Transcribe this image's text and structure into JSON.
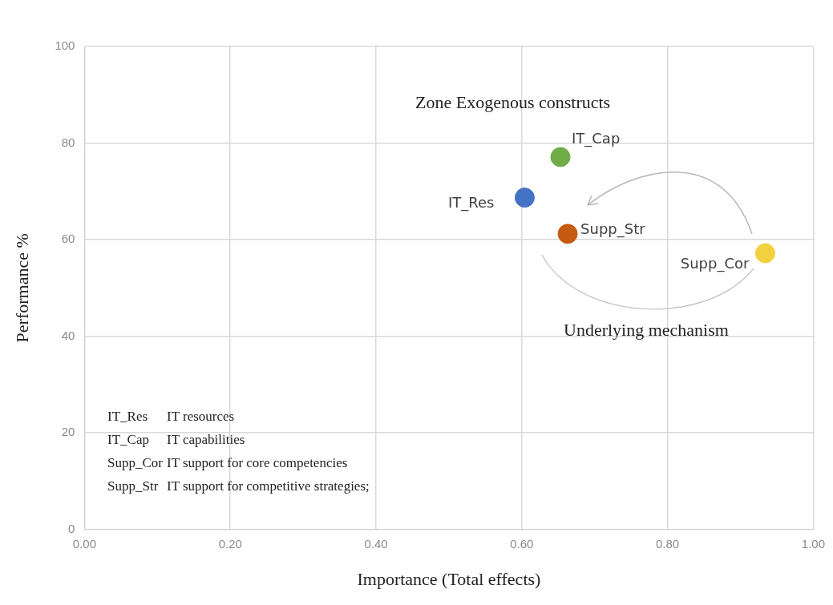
{
  "chart_data": {
    "type": "scatter",
    "xlabel": "Importance (Total effects)",
    "ylabel": "Performance %",
    "xlim": [
      0,
      1
    ],
    "xticks": [
      {
        "value": 0,
        "label": "0.00"
      },
      {
        "value": 0.2,
        "label": "0.20"
      },
      {
        "value": 0.4,
        "label": "0.40"
      },
      {
        "value": 0.6,
        "label": "0.60"
      },
      {
        "value": 0.8,
        "label": "0.80"
      },
      {
        "value": 1,
        "label": "1.00"
      }
    ],
    "ylim": [
      0,
      100
    ],
    "yticks": [
      0,
      20,
      40,
      60,
      80,
      100
    ],
    "grid": true,
    "legend": false,
    "marker": "circle",
    "series": [
      {
        "name": "IT_Res",
        "color": "#4472c4",
        "x": [
          0.604
        ],
        "values": [
          68.7
        ]
      },
      {
        "name": "IT_Cap",
        "color": "#70ad47",
        "x": [
          0.653
        ],
        "values": [
          77.1
        ]
      },
      {
        "name": "Supp_Str",
        "color": "#c55a11",
        "x": [
          0.663
        ],
        "values": [
          61.2
        ]
      },
      {
        "name": "Supp_Cor",
        "color": "#f2d13f",
        "x": [
          0.934
        ],
        "values": [
          57.2
        ]
      }
    ],
    "annotations": [
      "Zone Exogenous constructs",
      "Underlying mechanism",
      "IT_Res",
      "IT resources",
      "IT_Cap",
      "IT capabilities",
      "Supp_Cor",
      "IT support for core competencies",
      "Supp_Str",
      "IT support for competitive strategies;"
    ]
  }
}
